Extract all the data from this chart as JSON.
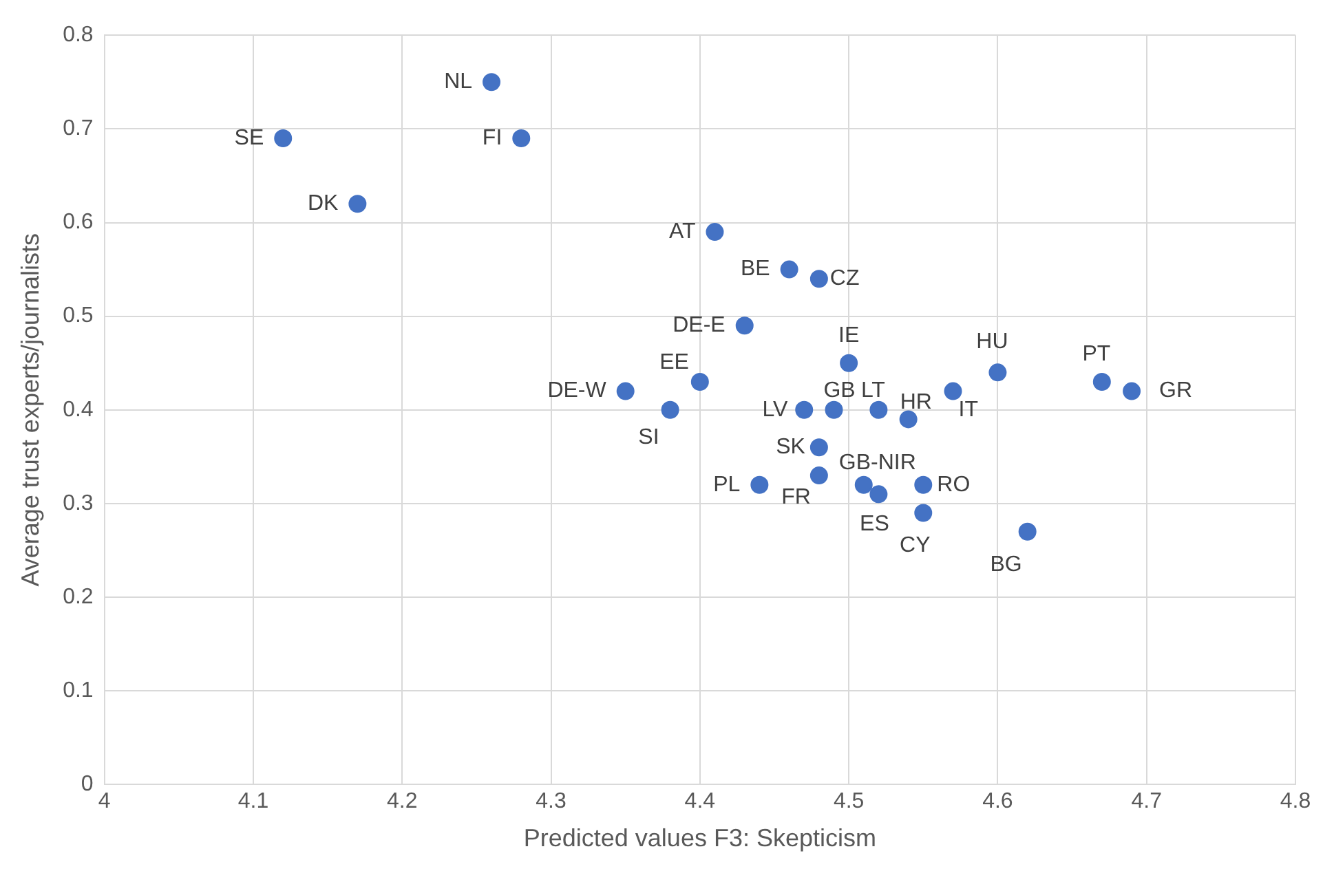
{
  "chart_data": {
    "type": "scatter",
    "xlabel": "Predicted values F3: Skepticism",
    "ylabel": "Average trust experts/journalists",
    "x": [
      4.26,
      4.12,
      4.28,
      4.17,
      4.41,
      4.46,
      4.48,
      4.43,
      4.5,
      4.6,
      4.67,
      4.69,
      4.57,
      4.35,
      4.4,
      4.38,
      4.47,
      4.49,
      4.52,
      4.54,
      4.48,
      4.48,
      4.44,
      4.51,
      4.52,
      4.55,
      4.55,
      4.62
    ],
    "series": [
      {
        "color": "#4472c4",
        "values": [
          0.75,
          0.69,
          0.69,
          0.62,
          0.59,
          0.55,
          0.54,
          0.49,
          0.45,
          0.44,
          0.43,
          0.42,
          0.42,
          0.42,
          0.43,
          0.4,
          0.4,
          0.4,
          0.4,
          0.39,
          0.36,
          0.33,
          0.32,
          0.32,
          0.31,
          0.32,
          0.29,
          0.27
        ]
      }
    ],
    "annotations": [
      {
        "text": "NL",
        "x": 4.26,
        "y": 0.75
      },
      {
        "text": "SE",
        "x": 4.12,
        "y": 0.69
      },
      {
        "text": "FI",
        "x": 4.28,
        "y": 0.69
      },
      {
        "text": "DK",
        "x": 4.17,
        "y": 0.62
      },
      {
        "text": "AT",
        "x": 4.41,
        "y": 0.59
      },
      {
        "text": "BE",
        "x": 4.46,
        "y": 0.55
      },
      {
        "text": "CZ",
        "x": 4.48,
        "y": 0.54
      },
      {
        "text": "DE-E",
        "x": 4.43,
        "y": 0.49
      },
      {
        "text": "IE",
        "x": 4.5,
        "y": 0.45
      },
      {
        "text": "HU",
        "x": 4.6,
        "y": 0.44
      },
      {
        "text": "PT",
        "x": 4.67,
        "y": 0.43
      },
      {
        "text": "GR",
        "x": 4.69,
        "y": 0.42
      },
      {
        "text": "IT",
        "x": 4.57,
        "y": 0.42
      },
      {
        "text": "DE-W",
        "x": 4.35,
        "y": 0.42
      },
      {
        "text": "EE",
        "x": 4.4,
        "y": 0.43
      },
      {
        "text": "SI",
        "x": 4.38,
        "y": 0.4
      },
      {
        "text": "LV",
        "x": 4.47,
        "y": 0.4
      },
      {
        "text": "GB",
        "x": 4.49,
        "y": 0.4
      },
      {
        "text": "LT",
        "x": 4.52,
        "y": 0.4
      },
      {
        "text": "HR",
        "x": 4.54,
        "y": 0.39
      },
      {
        "text": "SK",
        "x": 4.48,
        "y": 0.36
      },
      {
        "text": "FR",
        "x": 4.48,
        "y": 0.33
      },
      {
        "text": "PL",
        "x": 4.44,
        "y": 0.32
      },
      {
        "text": "GB-NIR",
        "x": 4.51,
        "y": 0.32
      },
      {
        "text": "ES",
        "x": 4.52,
        "y": 0.31
      },
      {
        "text": "RO",
        "x": 4.55,
        "y": 0.32
      },
      {
        "text": "CY",
        "x": 4.55,
        "y": 0.29
      },
      {
        "text": "BG",
        "x": 4.62,
        "y": 0.27
      }
    ],
    "xlim": [
      4,
      4.8
    ],
    "xticks": [
      4,
      4.1,
      4.2,
      4.3,
      4.4,
      4.5,
      4.6,
      4.7,
      4.8
    ],
    "ylim": [
      0,
      0.8
    ],
    "yticks": [
      0,
      0.1,
      0.2,
      0.3,
      0.4,
      0.5,
      0.6,
      0.7,
      0.8
    ],
    "grid": true,
    "legend": false,
    "marker": "circle"
  }
}
